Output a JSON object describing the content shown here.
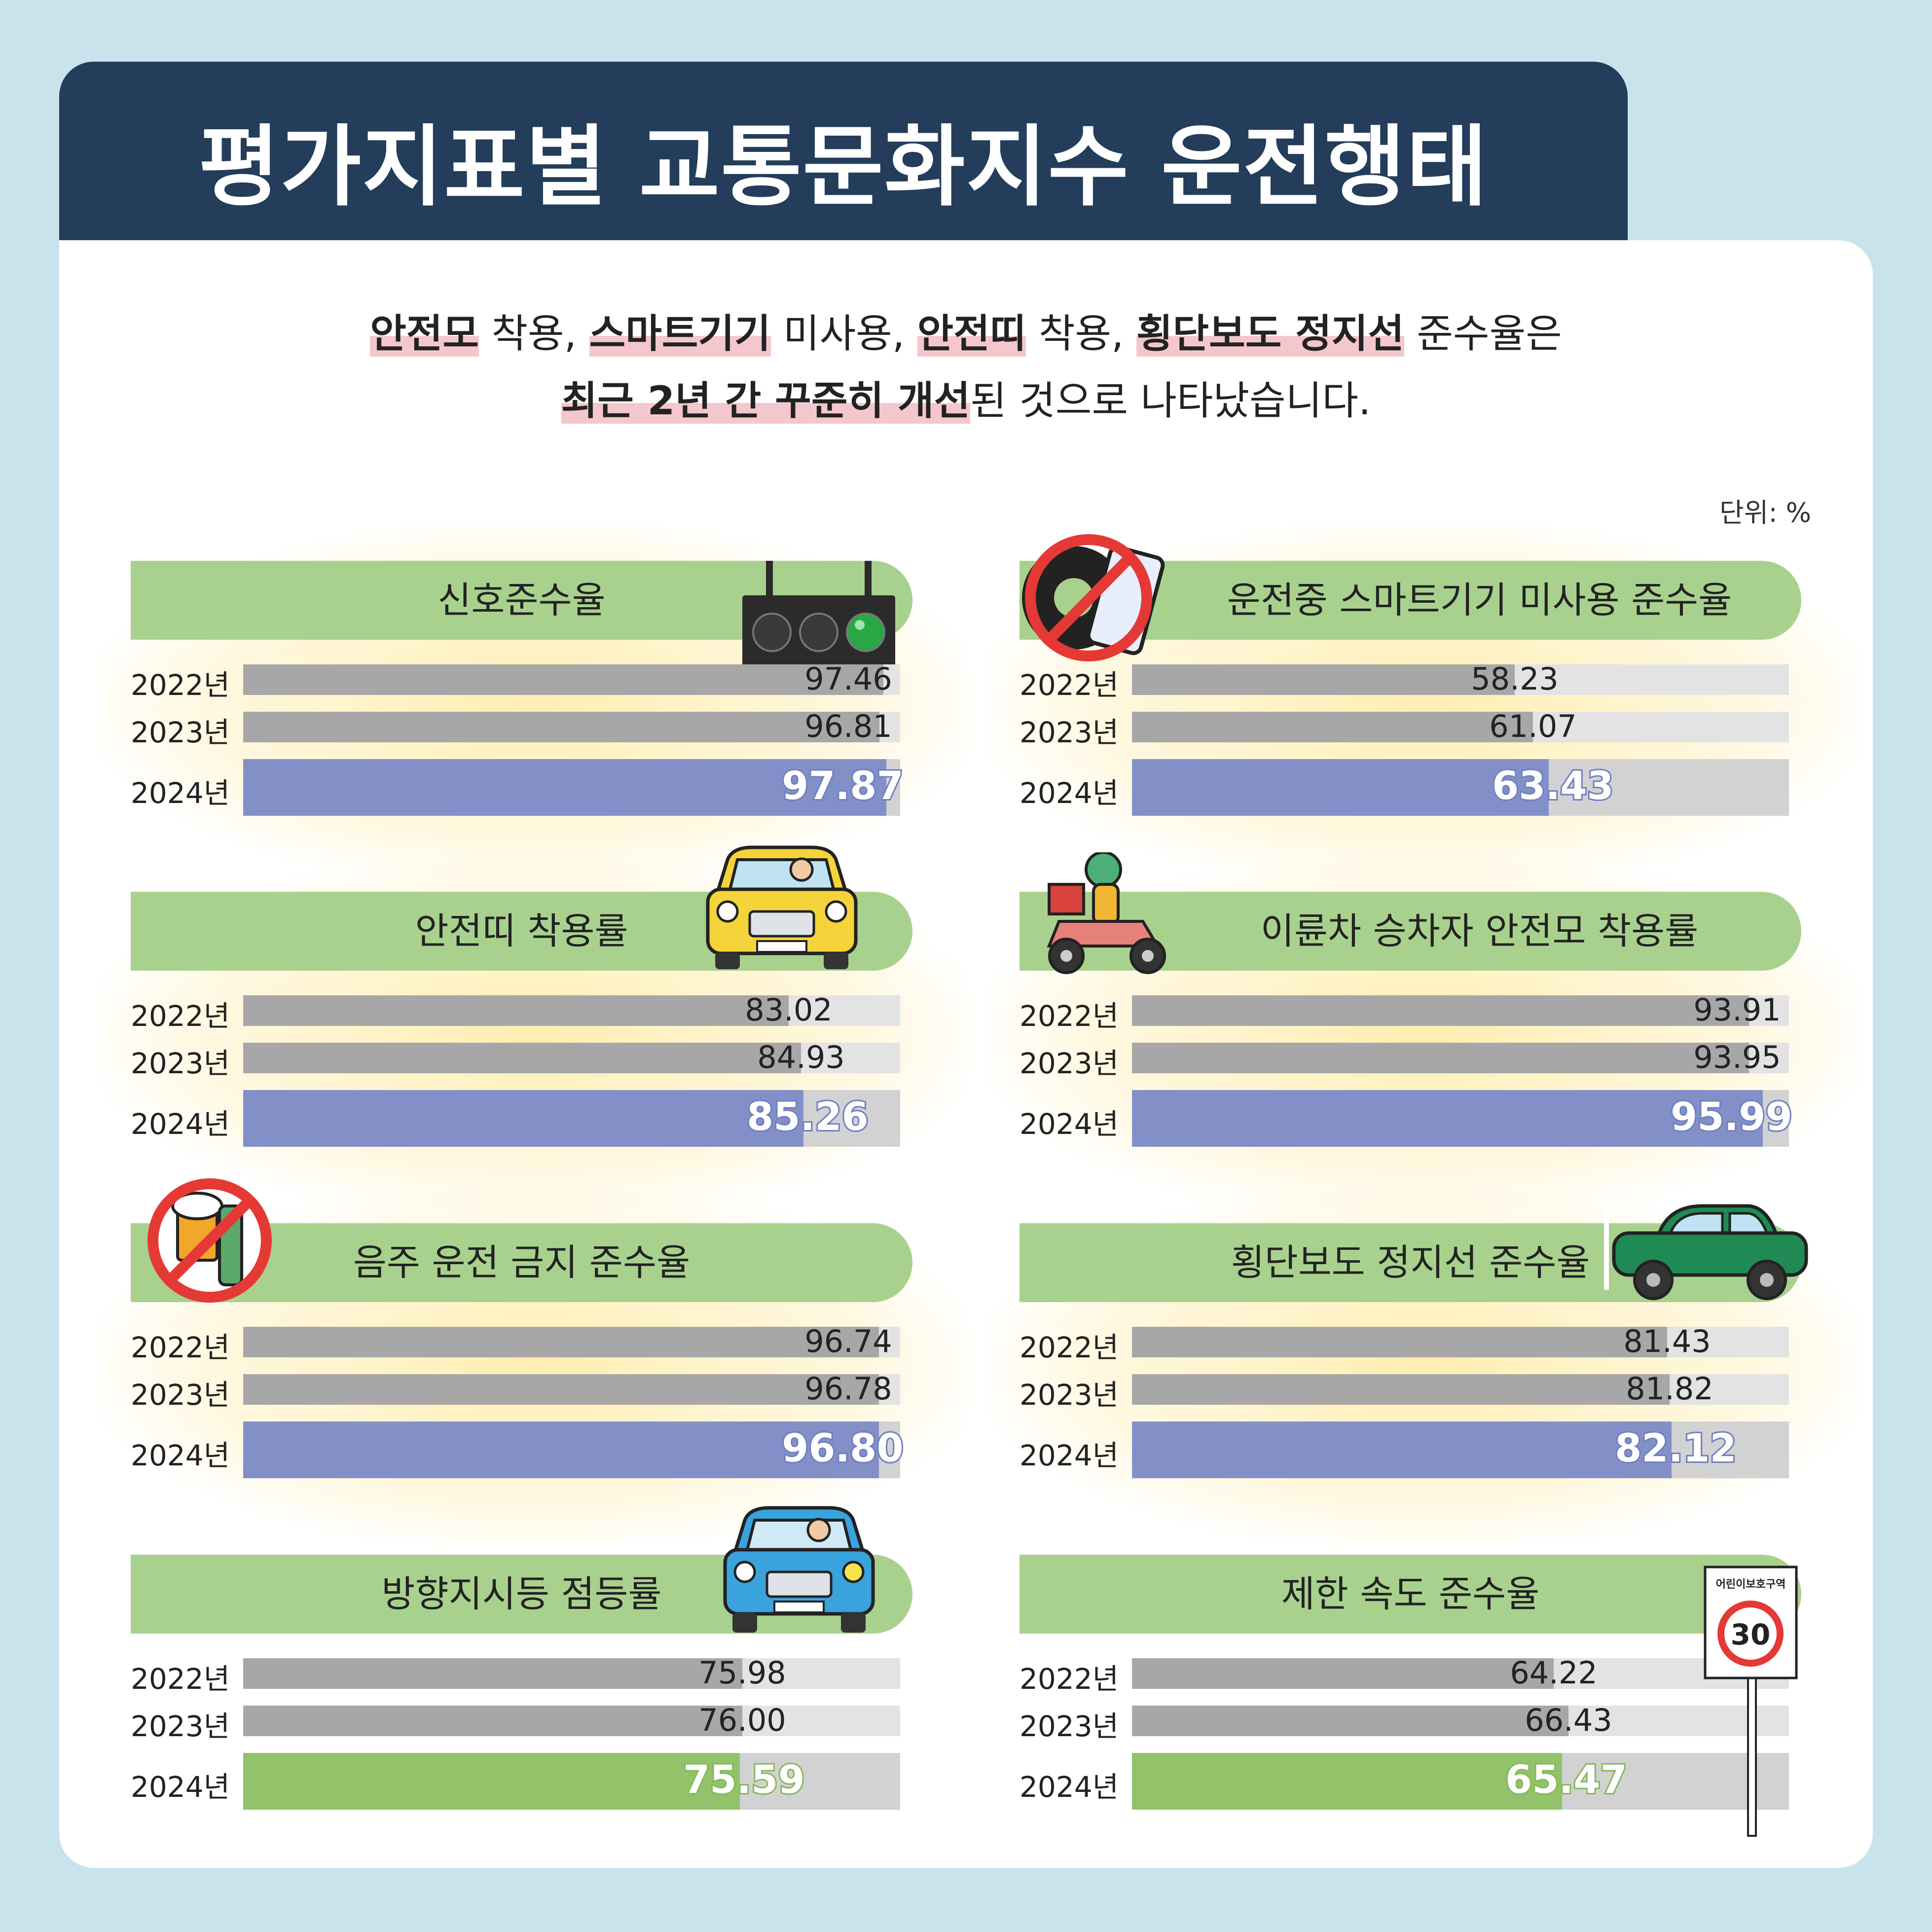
{
  "title": "평가지표별 교통문화지수 운전행태",
  "intro": {
    "line1": [
      {
        "t": "안전모",
        "hl": true
      },
      {
        "t": " 착용, ",
        "hl": false
      },
      {
        "t": "스마트기기",
        "hl": true
      },
      {
        "t": " 미사용, ",
        "hl": false
      },
      {
        "t": "안전띠",
        "hl": true
      },
      {
        "t": " 착용, ",
        "hl": false
      },
      {
        "t": "횡단보도 정지선",
        "hl": true
      },
      {
        "t": " 준수율은",
        "hl": false
      }
    ],
    "line2": [
      {
        "t": "최근 2년 간 꾸준히 개선",
        "hl": true
      },
      {
        "t": "된 것으로 나타났습니다.",
        "hl": false
      }
    ]
  },
  "unit": "단위: %",
  "chart_data": [
    {
      "type": "bar",
      "title": "신호준수율",
      "icon": "traffic-light-icon",
      "categories": [
        "2022년",
        "2023년",
        "2024년"
      ],
      "values": [
        97.46,
        96.81,
        97.87
      ],
      "labels": [
        "97.46",
        "96.81",
        "97.87"
      ],
      "xlim": [
        0,
        100
      ],
      "highlight": "blue"
    },
    {
      "type": "bar",
      "title": "운전중 스마트기기 미사용 준수율",
      "icon": "no-phone-driving-icon",
      "categories": [
        "2022년",
        "2023년",
        "2024년"
      ],
      "values": [
        58.23,
        61.07,
        63.43
      ],
      "labels": [
        "58.23",
        "61.07",
        "63.43"
      ],
      "xlim": [
        0,
        100
      ],
      "highlight": "blue"
    },
    {
      "type": "bar",
      "title": "안전띠 착용률",
      "icon": "yellow-car-icon",
      "categories": [
        "2022년",
        "2023년",
        "2024년"
      ],
      "values": [
        83.02,
        84.93,
        85.26
      ],
      "labels": [
        "83.02",
        "84.93",
        "85.26"
      ],
      "xlim": [
        0,
        100
      ],
      "highlight": "blue"
    },
    {
      "type": "bar",
      "title": "이륜차 승차자 안전모 착용률",
      "icon": "scooter-rider-icon",
      "categories": [
        "2022년",
        "2023년",
        "2024년"
      ],
      "values": [
        93.91,
        93.95,
        95.99
      ],
      "labels": [
        "93.91",
        "93.95",
        "95.99"
      ],
      "xlim": [
        0,
        100
      ],
      "highlight": "blue"
    },
    {
      "type": "bar",
      "title": "음주 운전 금지 준수율",
      "icon": "no-drinking-icon",
      "categories": [
        "2022년",
        "2023년",
        "2024년"
      ],
      "values": [
        96.74,
        96.78,
        96.8
      ],
      "labels": [
        "96.74",
        "96.78",
        "96.80"
      ],
      "xlim": [
        0,
        100
      ],
      "highlight": "blue"
    },
    {
      "type": "bar",
      "title": "횡단보도 정지선 준수율",
      "icon": "green-car-icon",
      "categories": [
        "2022년",
        "2023년",
        "2024년"
      ],
      "values": [
        81.43,
        81.82,
        82.12
      ],
      "labels": [
        "81.43",
        "81.82",
        "82.12"
      ],
      "xlim": [
        0,
        100
      ],
      "highlight": "blue"
    },
    {
      "type": "bar",
      "title": "방향지시등 점등률",
      "icon": "blue-car-icon",
      "categories": [
        "2022년",
        "2023년",
        "2024년"
      ],
      "values": [
        75.98,
        76.0,
        75.59
      ],
      "labels": [
        "75.98",
        "76.00",
        "75.59"
      ],
      "xlim": [
        0,
        100
      ],
      "highlight": "green"
    },
    {
      "type": "bar",
      "title": "제한 속도 준수율",
      "icon": "school-zone-sign-icon",
      "sign_text": "어린이보호구역",
      "sign_speed": "30",
      "categories": [
        "2022년",
        "2023년",
        "2024년"
      ],
      "values": [
        64.22,
        66.43,
        65.47
      ],
      "labels": [
        "64.22",
        "66.43",
        "65.47"
      ],
      "xlim": [
        0,
        100
      ],
      "highlight": "green"
    }
  ],
  "colors": {
    "header": "#233d5b",
    "pill": "#a9d18e",
    "bar_gray": "#a7a7a7",
    "bar_blue": "#8390c8",
    "bar_green": "#92c26a",
    "track": "#e3e3e3"
  }
}
